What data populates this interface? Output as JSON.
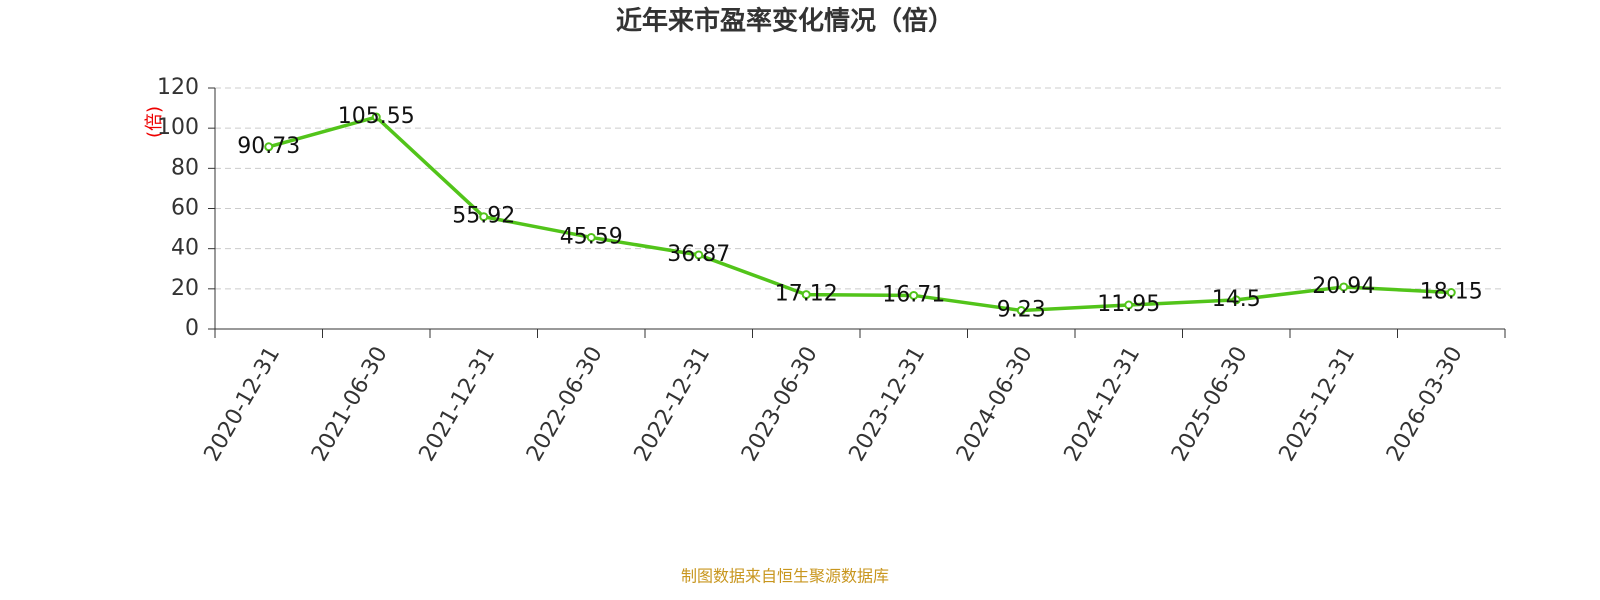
{
  "chart_data": {
    "type": "line",
    "title": "近年来市盈率变化情况（倍）",
    "y_label": "(倍)",
    "source": "制图数据来自恒生聚源数据库",
    "categories": [
      "2020-12-31",
      "2021-06-30",
      "2021-12-31",
      "2022-06-30",
      "2022-12-31",
      "2023-06-30",
      "2023-12-31",
      "2024-06-30",
      "2024-12-31",
      "2025-06-30",
      "2025-12-31",
      "2026-03-30"
    ],
    "series": [
      {
        "name": "市盈率",
        "color": "#52c41a",
        "values": [
          90.73,
          105.55,
          55.92,
          45.59,
          36.87,
          17.12,
          16.71,
          9.23,
          11.95,
          14.5,
          20.94,
          18.15
        ]
      }
    ],
    "ylim": [
      0,
      120
    ],
    "yticks": [
      0,
      20,
      40,
      60,
      80,
      100,
      120
    ],
    "grid": true
  }
}
